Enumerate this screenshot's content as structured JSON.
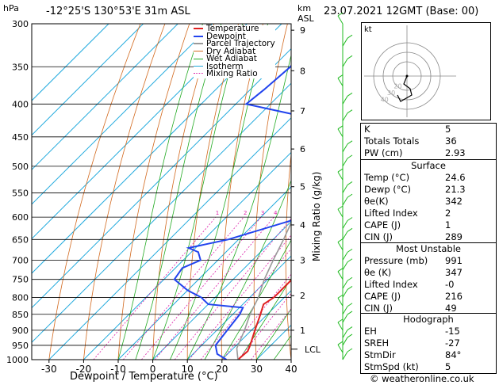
{
  "header": {
    "left_unit": "hPa",
    "location": "-12°25'S  130°53'E  31m  ASL",
    "right_unit_km": "km",
    "right_unit_asl": "ASL",
    "datetime": "23.07.2021  12GMT  (Base: 00)"
  },
  "axes": {
    "xlabel": "Dewpoint / Temperature (°C)",
    "ylabel_right": "Mixing Ratio (g/kg)",
    "x_ticks": [
      "-30",
      "-20",
      "-10",
      "0",
      "10",
      "20",
      "30",
      "40"
    ],
    "pressure_ticks": [
      "300",
      "350",
      "400",
      "450",
      "500",
      "550",
      "600",
      "650",
      "700",
      "750",
      "800",
      "850",
      "900",
      "950",
      "1000"
    ],
    "km_ticks": [
      "9",
      "8",
      "7",
      "6",
      "5",
      "4",
      "3",
      "2",
      "1"
    ],
    "lcl_label": "LCL",
    "mixing_ratio_labels": [
      "1",
      "2",
      "3",
      "4",
      "6",
      "8",
      "10",
      "15",
      "20",
      "25"
    ]
  },
  "legend": [
    {
      "label": "Temperature",
      "color": "#e02020"
    },
    {
      "label": "Dewpoint",
      "color": "#2244ee"
    },
    {
      "label": "Parcel Trajectory",
      "color": "#999999"
    },
    {
      "label": "Dry Adiabat",
      "color": "#d2691e"
    },
    {
      "label": "Wet Adiabat",
      "color": "#22aa22"
    },
    {
      "label": "Isotherm",
      "color": "#22aadd"
    },
    {
      "label": "Mixing Ratio",
      "color": "#dd22aa"
    }
  ],
  "chart_data": {
    "type": "line",
    "title": "Skew-T log-P diagram",
    "xlabel": "Dewpoint / Temperature (°C)",
    "ylabel": "hPa",
    "xlim": [
      -35,
      40
    ],
    "ylim": [
      1000,
      300
    ],
    "series": [
      {
        "name": "Temperature",
        "points": [
          [
            1000,
            24.6
          ],
          [
            970,
            25
          ],
          [
            950,
            24
          ],
          [
            900,
            21
          ],
          [
            850,
            18
          ],
          [
            820,
            16
          ],
          [
            800,
            17
          ],
          [
            780,
            17
          ],
          [
            750,
            17
          ],
          [
            700,
            12
          ],
          [
            650,
            10
          ],
          [
            600,
            6
          ],
          [
            550,
            0
          ],
          [
            500,
            -4
          ],
          [
            450,
            -10
          ],
          [
            420,
            -15
          ],
          [
            400,
            -18
          ],
          [
            380,
            -21
          ],
          [
            350,
            -28
          ]
        ]
      },
      {
        "name": "Dewpoint",
        "points": [
          [
            1000,
            21.3
          ],
          [
            980,
            17
          ],
          [
            950,
            14
          ],
          [
            900,
            13
          ],
          [
            850,
            12
          ],
          [
            830,
            11
          ],
          [
            820,
            0
          ],
          [
            800,
            -4
          ],
          [
            780,
            -10
          ],
          [
            750,
            -17
          ],
          [
            720,
            -18
          ],
          [
            700,
            -15
          ],
          [
            680,
            -18
          ],
          [
            670,
            -22
          ],
          [
            650,
            -13
          ],
          [
            600,
            2
          ],
          [
            550,
            -2
          ],
          [
            520,
            -12
          ],
          [
            500,
            -13
          ],
          [
            480,
            -19
          ],
          [
            450,
            -23
          ],
          [
            440,
            -23
          ],
          [
            420,
            -25
          ],
          [
            400,
            -47
          ],
          [
            380,
            -46
          ],
          [
            350,
            -45
          ],
          [
            320,
            -47
          ],
          [
            300,
            -52
          ]
        ]
      },
      {
        "name": "Parcel Trajectory",
        "points": [
          [
            1000,
            24.6
          ],
          [
            960,
            21
          ],
          [
            900,
            18
          ],
          [
            850,
            15
          ],
          [
            800,
            12.5
          ],
          [
            750,
            9
          ],
          [
            700,
            6
          ],
          [
            650,
            3
          ],
          [
            600,
            -0.5
          ],
          [
            550,
            -4
          ],
          [
            500,
            -9
          ],
          [
            450,
            -14
          ],
          [
            400,
            -20
          ],
          [
            350,
            -27
          ],
          [
            300,
            -36
          ]
        ]
      }
    ]
  },
  "hodograph": {
    "label": "kt",
    "ring_labels": [
      "20",
      "30",
      "40"
    ],
    "points": [
      [
        0,
        0
      ],
      [
        -2,
        -5
      ],
      [
        2,
        -8
      ],
      [
        3,
        -12
      ],
      [
        -4,
        -16
      ],
      [
        -6,
        -12
      ]
    ]
  },
  "indices": {
    "K_label": "K",
    "K_value": "5",
    "TT_label": "Totals Totals",
    "TT_value": "36",
    "PW_label": "PW (cm)",
    "PW_value": "2.93"
  },
  "surface": {
    "title": "Surface",
    "rows": [
      {
        "label": "Temp (°C)",
        "value": "24.6"
      },
      {
        "label": "Dewp (°C)",
        "value": "21.3"
      },
      {
        "label": "θe(K)",
        "value": "342"
      },
      {
        "label": "Lifted Index",
        "value": "2"
      },
      {
        "label": "CAPE (J)",
        "value": "1"
      },
      {
        "label": "CIN (J)",
        "value": "289"
      }
    ]
  },
  "most_unstable": {
    "title": "Most Unstable",
    "rows": [
      {
        "label": "Pressure (mb)",
        "value": "991"
      },
      {
        "label": "θe (K)",
        "value": "347"
      },
      {
        "label": "Lifted Index",
        "value": "-0"
      },
      {
        "label": "CAPE (J)",
        "value": "216"
      },
      {
        "label": "CIN (J)",
        "value": "49"
      }
    ]
  },
  "hodo_table": {
    "title": "Hodograph",
    "rows": [
      {
        "label": "EH",
        "value": "-15"
      },
      {
        "label": "SREH",
        "value": "-27"
      },
      {
        "label": "StmDir",
        "value": "84°"
      },
      {
        "label": "StmSpd (kt)",
        "value": "5"
      }
    ]
  },
  "footer": {
    "credit": "© weatheronline.co.uk"
  },
  "colors": {
    "temp": "#e02020",
    "dew": "#2244ee",
    "parcel": "#999999",
    "dry": "#d2691e",
    "wet": "#22aa22",
    "iso": "#22aadd",
    "mix": "#dd22aa",
    "wind": "#22bb22"
  }
}
